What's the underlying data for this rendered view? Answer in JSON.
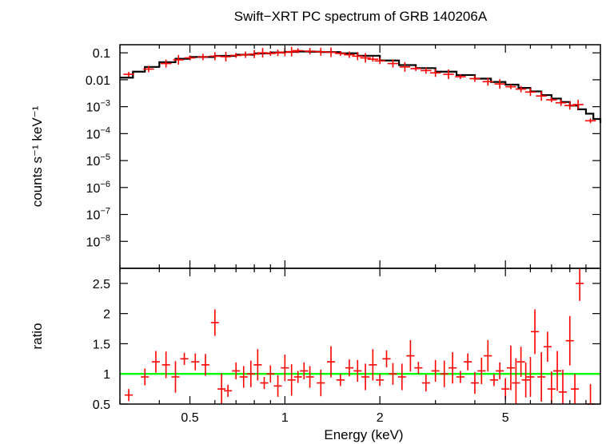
{
  "chart_data": [
    {
      "type": "line",
      "title": "Swift−XRT PC spectrum of GRB 140206A",
      "ylabel": "counts s⁻¹ keV⁻¹",
      "xscale": "log",
      "yscale": "log",
      "xlim": [
        0.3,
        10
      ],
      "ylim": [
        1e-09,
        0.2
      ],
      "y_ticks": [
        {
          "value": 0.1,
          "label": "0.1",
          "sup": ""
        },
        {
          "value": 0.01,
          "label": "0.01",
          "sup": ""
        },
        {
          "value": 0.001,
          "label": "10",
          "sup": "−3"
        },
        {
          "value": 0.0001,
          "label": "10",
          "sup": "−4"
        },
        {
          "value": 1e-05,
          "label": "10",
          "sup": "−5"
        },
        {
          "value": 1e-06,
          "label": "10",
          "sup": "−6"
        },
        {
          "value": 1e-07,
          "label": "10",
          "sup": "−7"
        },
        {
          "value": 1e-08,
          "label": "10",
          "sup": "−8"
        }
      ],
      "series": [
        {
          "style": "data-with-errorbars",
          "color": "#ff0000",
          "points": [
            [
              0.32,
              0.016
            ],
            [
              0.37,
              0.025
            ],
            [
              0.42,
              0.04
            ],
            [
              0.46,
              0.055
            ],
            [
              0.5,
              0.065
            ],
            [
              0.55,
              0.07
            ],
            [
              0.6,
              0.075
            ],
            [
              0.65,
              0.072
            ],
            [
              0.7,
              0.08
            ],
            [
              0.75,
              0.085
            ],
            [
              0.8,
              0.09
            ],
            [
              0.85,
              0.1
            ],
            [
              0.9,
              0.095
            ],
            [
              0.95,
              0.1
            ],
            [
              1.0,
              0.105
            ],
            [
              1.05,
              0.11
            ],
            [
              1.1,
              0.12
            ],
            [
              1.2,
              0.115
            ],
            [
              1.3,
              0.11
            ],
            [
              1.4,
              0.105
            ],
            [
              1.5,
              0.095
            ],
            [
              1.6,
              0.085
            ],
            [
              1.7,
              0.075
            ],
            [
              1.8,
              0.065
            ],
            [
              1.9,
              0.058
            ],
            [
              2.0,
              0.05
            ],
            [
              2.2,
              0.04
            ],
            [
              2.4,
              0.03
            ],
            [
              2.6,
              0.026
            ],
            [
              2.8,
              0.022
            ],
            [
              3.0,
              0.018
            ],
            [
              3.3,
              0.016
            ],
            [
              3.6,
              0.013
            ],
            [
              4.0,
              0.011
            ],
            [
              4.4,
              0.0085
            ],
            [
              4.8,
              0.007
            ],
            [
              5.2,
              0.0055
            ],
            [
              5.6,
              0.0045
            ],
            [
              6.0,
              0.0035
            ],
            [
              6.5,
              0.0025
            ],
            [
              7.0,
              0.0018
            ],
            [
              7.5,
              0.0014
            ],
            [
              8.0,
              0.0011
            ],
            [
              8.5,
              0.0012
            ],
            [
              9.3,
              0.0003
            ]
          ]
        },
        {
          "style": "model-step",
          "color": "#000000",
          "points": [
            [
              0.3,
              0.012
            ],
            [
              0.33,
              0.02
            ],
            [
              0.36,
              0.03
            ],
            [
              0.4,
              0.045
            ],
            [
              0.45,
              0.06
            ],
            [
              0.5,
              0.07
            ],
            [
              0.6,
              0.077
            ],
            [
              0.7,
              0.085
            ],
            [
              0.8,
              0.095
            ],
            [
              0.9,
              0.103
            ],
            [
              1.0,
              0.108
            ],
            [
              1.1,
              0.112
            ],
            [
              1.2,
              0.11
            ],
            [
              1.3,
              0.107
            ],
            [
              1.5,
              0.096
            ],
            [
              1.7,
              0.078
            ],
            [
              2.0,
              0.052
            ],
            [
              2.3,
              0.035
            ],
            [
              2.6,
              0.027
            ],
            [
              3.0,
              0.02
            ],
            [
              3.5,
              0.015
            ],
            [
              4.0,
              0.011
            ],
            [
              4.5,
              0.0083
            ],
            [
              5.0,
              0.0066
            ],
            [
              5.5,
              0.005
            ],
            [
              6.0,
              0.0037
            ],
            [
              6.5,
              0.0027
            ],
            [
              7.0,
              0.002
            ],
            [
              7.5,
              0.0015
            ],
            [
              8.0,
              0.0011
            ],
            [
              8.5,
              0.0008
            ],
            [
              9.0,
              0.00055
            ],
            [
              9.5,
              0.00035
            ],
            [
              10.0,
              0.00025
            ]
          ]
        }
      ]
    },
    {
      "type": "scatter",
      "xlabel": "Energy (keV)",
      "ylabel": "ratio",
      "xscale": "log",
      "xlim": [
        0.3,
        10
      ],
      "ylim": [
        0.5,
        2.75
      ],
      "x_ticks": [
        {
          "value": 0.5,
          "label": "0.5"
        },
        {
          "value": 1,
          "label": "1"
        },
        {
          "value": 2,
          "label": "2"
        },
        {
          "value": 5,
          "label": "5"
        }
      ],
      "y_ticks": [
        {
          "value": 0.5,
          "label": "0.5"
        },
        {
          "value": 1,
          "label": "1"
        },
        {
          "value": 1.5,
          "label": "1.5"
        },
        {
          "value": 2,
          "label": "2"
        },
        {
          "value": 2.5,
          "label": "2.5"
        }
      ],
      "reference_line": {
        "value": 1,
        "color": "#00ff00"
      },
      "series": [
        {
          "style": "data-with-errorbars",
          "color": "#ff0000",
          "points": [
            [
              0.32,
              0.65
            ],
            [
              0.36,
              0.95
            ],
            [
              0.39,
              1.2
            ],
            [
              0.42,
              1.15
            ],
            [
              0.45,
              0.95
            ],
            [
              0.48,
              1.25
            ],
            [
              0.52,
              1.2
            ],
            [
              0.56,
              1.15
            ],
            [
              0.6,
              1.85
            ],
            [
              0.63,
              0.75
            ],
            [
              0.66,
              0.72
            ],
            [
              0.7,
              1.05
            ],
            [
              0.74,
              0.95
            ],
            [
              0.78,
              1.0
            ],
            [
              0.82,
              1.15
            ],
            [
              0.86,
              0.85
            ],
            [
              0.9,
              1.0
            ],
            [
              0.95,
              0.8
            ],
            [
              1.0,
              1.1
            ],
            [
              1.05,
              0.9
            ],
            [
              1.1,
              0.95
            ],
            [
              1.15,
              1.05
            ],
            [
              1.2,
              0.95
            ],
            [
              1.3,
              0.85
            ],
            [
              1.4,
              1.2
            ],
            [
              1.5,
              0.9
            ],
            [
              1.6,
              1.1
            ],
            [
              1.7,
              1.05
            ],
            [
              1.8,
              0.95
            ],
            [
              1.9,
              1.15
            ],
            [
              2.0,
              0.9
            ],
            [
              2.1,
              1.25
            ],
            [
              2.2,
              1.0
            ],
            [
              2.35,
              0.95
            ],
            [
              2.5,
              1.3
            ],
            [
              2.65,
              1.1
            ],
            [
              2.8,
              0.85
            ],
            [
              3.0,
              1.05
            ],
            [
              3.2,
              1.0
            ],
            [
              3.4,
              1.1
            ],
            [
              3.6,
              0.95
            ],
            [
              3.8,
              1.2
            ],
            [
              4.0,
              0.85
            ],
            [
              4.2,
              1.05
            ],
            [
              4.4,
              1.3
            ],
            [
              4.6,
              0.9
            ],
            [
              4.8,
              1.05
            ],
            [
              5.0,
              0.75
            ],
            [
              5.2,
              1.1
            ],
            [
              5.4,
              0.85
            ],
            [
              5.6,
              1.2
            ],
            [
              5.8,
              0.9
            ],
            [
              6.0,
              0.95
            ],
            [
              6.2,
              1.7
            ],
            [
              6.5,
              0.95
            ],
            [
              6.8,
              1.45
            ],
            [
              7.0,
              0.75
            ],
            [
              7.3,
              1.05
            ],
            [
              7.6,
              0.7
            ],
            [
              8.0,
              1.55
            ],
            [
              8.3,
              0.75
            ],
            [
              8.6,
              2.5
            ],
            [
              9.3,
              0.45
            ]
          ]
        }
      ]
    }
  ]
}
